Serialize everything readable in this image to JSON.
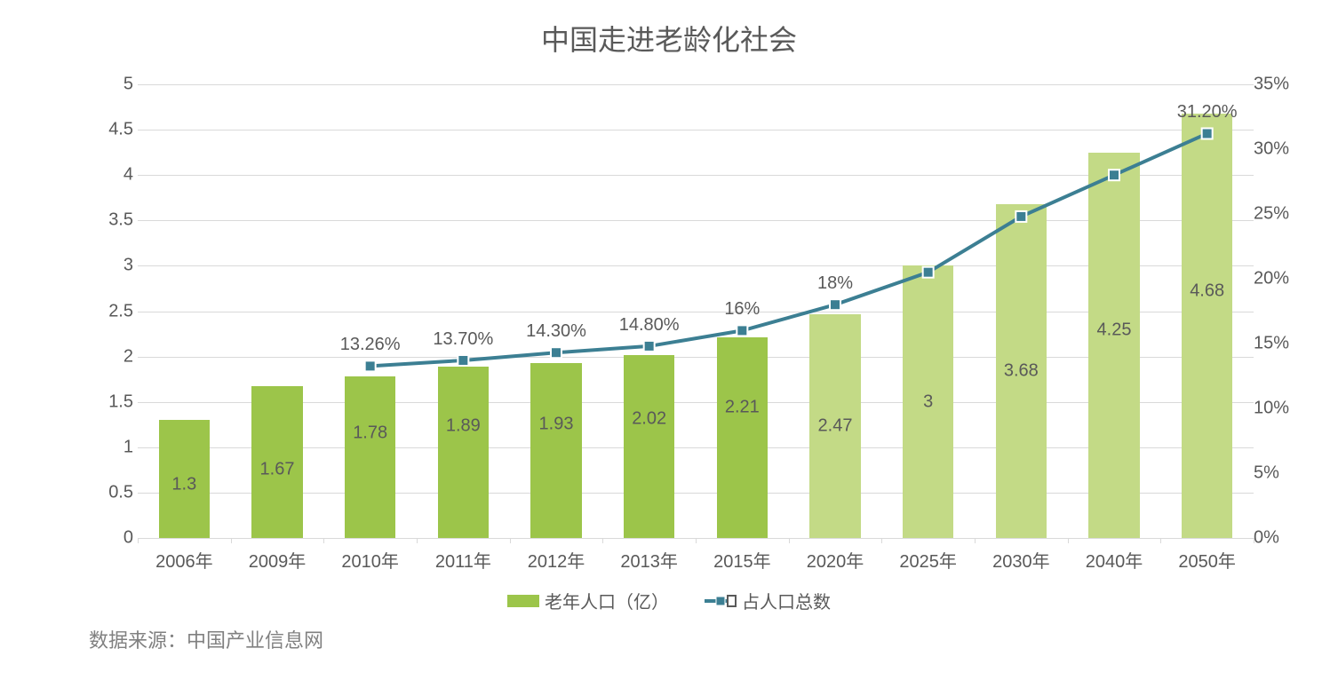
{
  "chart": {
    "type": "bar+line",
    "title": "中国走进老龄化社会",
    "title_fontsize": 32,
    "title_color": "#595959",
    "background_color": "#ffffff",
    "categories": [
      "2006年",
      "2009年",
      "2010年",
      "2011年",
      "2012年",
      "2013年",
      "2015年",
      "2020年",
      "2025年",
      "2030年",
      "2040年",
      "2050年"
    ],
    "bars": {
      "label": "老年人口（亿）",
      "values": [
        1.3,
        1.67,
        1.78,
        1.89,
        1.93,
        2.02,
        2.21,
        2.47,
        3,
        3.68,
        4.25,
        4.68
      ],
      "display_values": [
        "1.3",
        "1.67",
        "1.78",
        "1.89",
        "1.93",
        "2.02",
        "2.21",
        "2.47",
        "3",
        "3.68",
        "4.25",
        "4.68"
      ],
      "colors": [
        "#9cc54a",
        "#9cc54a",
        "#9cc54a",
        "#9cc54a",
        "#9cc54a",
        "#9cc54a",
        "#9cc54a",
        "#c3da86",
        "#c3da86",
        "#c3da86",
        "#c3da86",
        "#c3da86"
      ],
      "bar_width_ratio": 0.55,
      "label_color": "#595959",
      "label_fontsize": 20
    },
    "line": {
      "label": "占人口总数",
      "values": [
        null,
        null,
        13.26,
        13.7,
        14.3,
        14.8,
        16,
        18,
        20.5,
        24.8,
        28,
        31.2
      ],
      "display_values": [
        "",
        "",
        "13.26%",
        "13.70%",
        "14.30%",
        "14.80%",
        "16%",
        "18%",
        "",
        "",
        "",
        "31.20%"
      ],
      "color": "#3c7f93",
      "marker_color": "#3c7f93",
      "marker_fill": "#3c7f93",
      "marker_border": "#ffffff",
      "line_width": 4,
      "marker_size": 12,
      "marker_style": "square"
    },
    "y_left": {
      "min": 0,
      "max": 5,
      "step": 0.5,
      "tick_labels": [
        "0",
        "0.5",
        "1",
        "1.5",
        "2",
        "2.5",
        "3",
        "3.5",
        "4",
        "4.5",
        "5"
      ],
      "label_color": "#595959",
      "fontsize": 20
    },
    "y_right": {
      "min": 0,
      "max": 35,
      "step": 5,
      "tick_labels": [
        "0%",
        "5%",
        "10%",
        "15%",
        "20%",
        "25%",
        "30%",
        "35%"
      ],
      "label_color": "#595959",
      "fontsize": 20
    },
    "grid_color": "#d9d9d9",
    "axis_color": "#d9d9d9",
    "x_label_color": "#595959",
    "x_label_fontsize": 20
  },
  "legend": {
    "items": [
      {
        "type": "bar",
        "label": "老年人口（亿）",
        "color": "#9cc54a"
      },
      {
        "type": "line",
        "label": "占人口总数",
        "color": "#3c7f93"
      }
    ]
  },
  "source": {
    "text": "数据来源：中国产业信息网",
    "color": "#808080",
    "fontsize": 22
  }
}
